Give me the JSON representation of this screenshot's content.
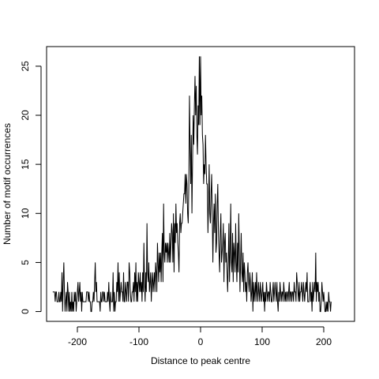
{
  "chart_data": {
    "type": "line",
    "title": "",
    "xlabel": "Distance to peak centre",
    "ylabel": "Number of motif occurrences",
    "xlim": [
      -250,
      250
    ],
    "ylim": [
      -1,
      27
    ],
    "grid": false,
    "x_ticks": [
      -200,
      -100,
      0,
      100,
      200
    ],
    "y_ticks": [
      0,
      5,
      10,
      15,
      20,
      25
    ],
    "x_tick_labels": [
      "-200",
      "-100",
      "0",
      "100",
      "200"
    ],
    "y_tick_labels": [
      "0",
      "5",
      "10",
      "15",
      "20",
      "25"
    ],
    "x_start": -240,
    "x_step": 1,
    "series": [
      {
        "line_color": "#000000",
        "values": [
          2,
          2,
          2,
          2,
          1,
          2,
          2,
          1,
          1,
          1,
          2,
          1,
          1,
          2,
          1,
          4,
          0,
          3,
          5,
          2,
          0,
          1,
          2,
          0,
          3,
          2,
          0,
          2,
          0,
          1,
          0,
          2,
          0,
          1,
          0,
          2,
          1,
          2,
          0,
          1,
          2,
          3,
          1,
          2,
          3,
          1,
          2,
          0,
          2,
          1,
          1,
          1,
          1,
          1,
          1,
          2,
          2,
          2,
          1,
          2,
          1,
          1,
          0,
          0,
          1,
          1,
          2,
          1,
          3,
          5,
          2,
          3,
          1,
          1,
          1,
          1,
          1,
          0,
          2,
          1,
          1,
          2,
          2,
          1,
          2,
          1,
          1,
          1,
          1,
          2,
          1,
          3,
          1,
          0,
          2,
          1,
          1,
          1,
          4,
          0,
          2,
          0,
          1,
          1,
          3,
          2,
          5,
          1,
          4,
          1,
          2,
          3,
          2,
          2,
          1,
          4,
          1,
          1,
          3,
          2,
          1,
          3,
          3,
          1,
          5,
          4,
          2,
          1,
          1,
          2,
          2,
          3,
          1,
          4,
          2,
          5,
          1,
          3,
          1,
          4,
          3,
          2,
          4,
          2,
          3,
          1,
          4,
          2,
          7,
          3,
          1,
          4,
          2,
          9,
          4,
          3,
          5,
          2,
          3,
          4,
          1,
          3,
          4,
          2,
          3,
          4,
          2,
          5,
          4,
          2,
          7,
          5,
          3,
          6,
          4,
          6,
          3,
          6,
          8,
          3,
          11,
          6,
          5,
          7,
          6,
          7,
          5,
          7,
          6,
          5,
          8,
          5,
          7,
          9,
          8,
          5,
          10,
          4,
          9,
          7,
          11,
          8,
          9,
          7,
          6,
          4,
          9,
          10,
          8,
          9,
          9,
          10,
          11,
          12,
          12,
          14,
          11,
          14,
          13,
          10,
          9,
          13,
          22,
          17,
          13,
          18,
          10,
          15,
          20,
          17,
          21,
          24,
          20,
          23,
          18,
          16,
          21,
          19,
          26,
          19,
          26,
          20,
          22,
          18,
          17,
          13,
          15,
          14,
          18,
          15,
          13,
          13,
          8,
          11,
          15,
          10,
          9,
          12,
          14,
          10,
          5,
          9,
          11,
          8,
          12,
          6,
          7,
          11,
          13,
          8,
          6,
          4,
          8,
          10,
          5,
          6,
          7,
          9,
          3,
          7,
          8,
          5,
          6,
          4,
          2,
          5,
          9,
          3,
          6,
          11,
          5,
          4,
          8,
          3,
          7,
          6,
          4,
          9,
          5,
          3,
          7,
          4,
          10,
          6,
          2,
          5,
          8,
          4,
          3,
          6,
          2,
          5,
          4,
          2,
          3,
          1,
          4,
          5,
          3,
          2,
          4,
          3,
          1,
          2,
          4,
          0,
          3,
          1,
          2,
          3,
          1,
          4,
          2,
          1,
          3,
          2,
          1,
          3,
          2,
          1,
          2,
          3,
          1,
          2,
          0,
          2,
          1,
          3,
          2,
          1,
          2,
          2,
          1,
          3,
          2,
          1,
          1,
          2,
          3,
          1,
          2,
          3,
          2,
          1,
          3,
          1,
          0,
          2,
          1,
          3,
          2,
          1,
          2,
          2,
          1,
          3,
          2,
          1,
          2,
          1,
          2,
          2,
          1,
          2,
          3,
          1,
          2,
          2,
          1,
          2,
          2,
          1,
          3,
          2,
          2,
          1,
          4,
          3,
          2,
          1,
          3,
          1,
          2,
          2,
          3,
          2,
          1,
          3,
          2,
          1,
          2,
          3,
          2,
          4,
          1,
          1,
          1,
          2,
          3,
          1,
          2,
          0,
          3,
          1,
          2,
          3,
          2,
          6,
          1,
          3,
          2,
          3,
          1,
          2,
          0,
          0,
          1,
          3,
          2,
          1,
          2,
          1,
          0,
          0,
          1,
          0,
          1,
          0,
          2,
          1,
          1,
          0,
          1
        ]
      }
    ]
  }
}
